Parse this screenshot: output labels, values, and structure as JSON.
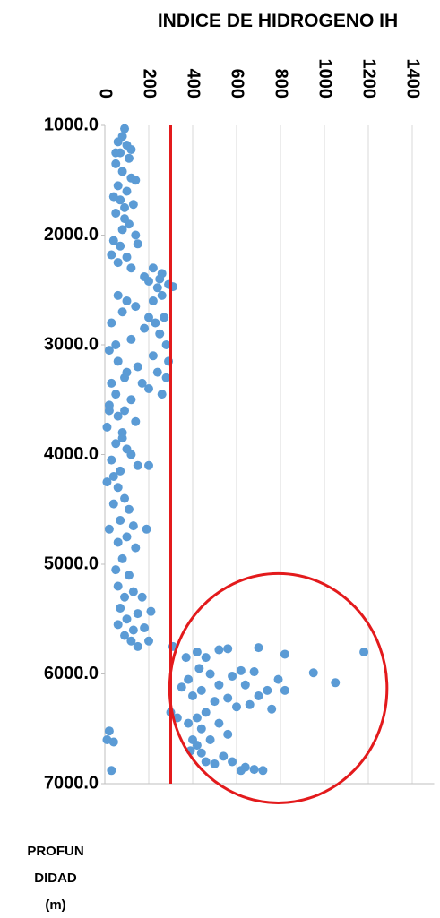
{
  "chart_data": {
    "type": "scatter",
    "title": "INDICE DE HIDROGENO IH",
    "ylabel": [
      "PROFUN",
      "DIDAD",
      "(m)"
    ],
    "color": "#5b9bd5",
    "xlim": [
      0,
      1500
    ],
    "xticks": [
      0,
      200,
      400,
      600,
      800,
      1000,
      1200,
      1400
    ],
    "ylim": [
      1000,
      7000
    ],
    "y_inverted": true,
    "yticks": [
      {
        "value": 1000,
        "label": "1000.0"
      },
      {
        "value": 2000,
        "label": "2000.0"
      },
      {
        "value": 3000,
        "label": "3000.0"
      },
      {
        "value": 4000,
        "label": "4000.0"
      },
      {
        "value": 5000,
        "label": "5000.0"
      },
      {
        "value": 6000,
        "label": "6000.0"
      },
      {
        "value": 7000,
        "label": "7000.0"
      }
    ],
    "grid": true,
    "reference_line": {
      "x": 300,
      "color": "#e31a1c"
    },
    "highlight": {
      "x": 790,
      "y": 6130,
      "rx": 495,
      "ry": 1045,
      "color": "#e31a1c"
    },
    "x": [
      90,
      80,
      60,
      100,
      70,
      110,
      50,
      80,
      120,
      60,
      100,
      70,
      130,
      50,
      90,
      110,
      80,
      140,
      40,
      70,
      150,
      30,
      100,
      60,
      120,
      50,
      90,
      40,
      140,
      120,
      220,
      260,
      290,
      200,
      240,
      180,
      310,
      250,
      60,
      100,
      30,
      140,
      80,
      200,
      230,
      270,
      180,
      250,
      50,
      120,
      20,
      280,
      220,
      60,
      150,
      240,
      90,
      30,
      200,
      260,
      120,
      170,
      280,
      100,
      50,
      220,
      260,
      290,
      20,
      60,
      10,
      140,
      80,
      50,
      100,
      30,
      150,
      70,
      10,
      200,
      60,
      90,
      40,
      110,
      70,
      20,
      130,
      190,
      100,
      60,
      140,
      80,
      40,
      120,
      20,
      90,
      80,
      50,
      110,
      60,
      130,
      90,
      170,
      70,
      150,
      210,
      100,
      60,
      130,
      180,
      90,
      200,
      150,
      120,
      310,
      370,
      420,
      460,
      520,
      560,
      700,
      820,
      1180,
      950,
      1050,
      790,
      820,
      740,
      760,
      680,
      620,
      580,
      520,
      480,
      430,
      380,
      350,
      400,
      440,
      500,
      560,
      600,
      660,
      700,
      640,
      460,
      420,
      380,
      440,
      520,
      560,
      480,
      420,
      440,
      460,
      500,
      540,
      580,
      620,
      680,
      720,
      640,
      400,
      390,
      300,
      330,
      20,
      40,
      10,
      30
    ],
    "values": [
      1030,
      1100,
      1150,
      1180,
      1250,
      1300,
      1350,
      1420,
      1480,
      1550,
      1600,
      1680,
      1720,
      1800,
      1850,
      1900,
      1950,
      2000,
      2050,
      2100,
      2080,
      2180,
      2200,
      2250,
      2300,
      1250,
      1750,
      1650,
      1500,
      1220,
      2300,
      2350,
      2450,
      2420,
      2480,
      2380,
      2470,
      2400,
      2550,
      2600,
      2800,
      2650,
      2700,
      2750,
      2800,
      2750,
      2850,
      2900,
      3000,
      2950,
      3050,
      3000,
      3100,
      3150,
      3200,
      3250,
      3300,
      3350,
      3400,
      3450,
      3500,
      3350,
      3300,
      3250,
      3450,
      2600,
      2550,
      3150,
      3600,
      3650,
      3750,
      3700,
      3800,
      3900,
      3950,
      4050,
      4100,
      4150,
      4250,
      4100,
      4300,
      4400,
      4450,
      4500,
      4600,
      4680,
      4650,
      4680,
      4750,
      4800,
      4850,
      3850,
      4200,
      4000,
      3550,
      3600,
      4950,
      5050,
      5100,
      5200,
      5250,
      5300,
      5300,
      5400,
      5450,
      5430,
      5500,
      5550,
      5600,
      5580,
      5650,
      5700,
      5750,
      5700,
      5750,
      5850,
      5800,
      5850,
      5780,
      5770,
      5760,
      5820,
      5800,
      5990,
      6080,
      6050,
      6150,
      6150,
      6320,
      5980,
      5970,
      6020,
      6100,
      6000,
      5950,
      6050,
      6120,
      6200,
      6150,
      6250,
      6220,
      6300,
      6280,
      6200,
      6100,
      6350,
      6400,
      6450,
      6500,
      6450,
      6550,
      6600,
      6650,
      6720,
      6800,
      6820,
      6750,
      6800,
      6880,
      6870,
      6880,
      6850,
      6600,
      6700,
      6350,
      6400,
      6520,
      6620,
      6600,
      6880
    ]
  }
}
